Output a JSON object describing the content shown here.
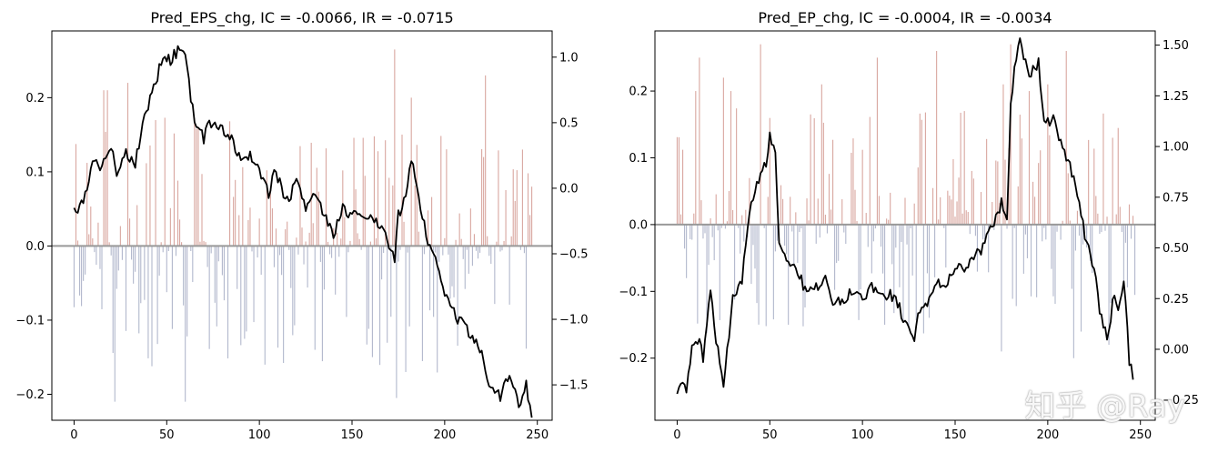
{
  "watermark": "知乎 @Ray",
  "chart_data": [
    {
      "type": "bar+line",
      "title": "Pred_EPS_chg, IC = -0.0066, IR = -0.0715",
      "xlim": [
        -12,
        258
      ],
      "xticks": [
        0,
        50,
        100,
        150,
        200,
        250
      ],
      "ylim": [
        -0.235,
        0.29
      ],
      "yticks": [
        -0.2,
        -0.1,
        0.0,
        0.1,
        0.2
      ],
      "ytick_labels": [
        "−0.2",
        "−0.1",
        "0.0",
        "0.1",
        "0.2"
      ],
      "y2lim": [
        -1.77,
        1.2
      ],
      "y2ticks": [
        -1.5,
        -1.0,
        -0.5,
        0.0,
        0.5,
        1.0
      ],
      "y2tick_labels": [
        "−1.5",
        "−1.0",
        "−0.5",
        "0.0",
        "0.5",
        "1.0"
      ],
      "zero_line": 0.0,
      "bars_seed": 7,
      "bar_spikes": [
        [
          16,
          0.21
        ],
        [
          18,
          0.21
        ],
        [
          22,
          -0.21
        ],
        [
          29,
          0.22
        ],
        [
          60,
          -0.21
        ],
        [
          103,
          -0.16
        ],
        [
          173,
          0.265
        ],
        [
          174,
          -0.205
        ],
        [
          182,
          0.2
        ],
        [
          222,
          0.23
        ],
        [
          242,
          0.13
        ],
        [
          247,
          0.08
        ]
      ],
      "bar_positive_color": "#d9a8a1",
      "bar_negative_color": "#b3b9cd",
      "line_color": "#000000",
      "cumulative_line_keypoints": [
        [
          0,
          -0.15
        ],
        [
          2,
          -0.18
        ],
        [
          5,
          -0.1
        ],
        [
          10,
          0.22
        ],
        [
          15,
          0.15
        ],
        [
          20,
          0.3
        ],
        [
          23,
          0.12
        ],
        [
          27,
          0.28
        ],
        [
          33,
          0.18
        ],
        [
          38,
          0.55
        ],
        [
          45,
          0.85
        ],
        [
          48,
          1.02
        ],
        [
          52,
          0.98
        ],
        [
          56,
          1.05
        ],
        [
          60,
          1.0
        ],
        [
          65,
          0.5
        ],
        [
          70,
          0.38
        ],
        [
          72,
          0.52
        ],
        [
          78,
          0.48
        ],
        [
          85,
          0.4
        ],
        [
          90,
          0.2
        ],
        [
          95,
          0.25
        ],
        [
          100,
          0.15
        ],
        [
          105,
          -0.05
        ],
        [
          108,
          0.15
        ],
        [
          115,
          -0.1
        ],
        [
          120,
          0.05
        ],
        [
          125,
          -0.15
        ],
        [
          130,
          -0.05
        ],
        [
          135,
          -0.2
        ],
        [
          140,
          -0.35
        ],
        [
          145,
          -0.15
        ],
        [
          150,
          -0.2
        ],
        [
          160,
          -0.2
        ],
        [
          165,
          -0.28
        ],
        [
          170,
          -0.42
        ],
        [
          173,
          -0.55
        ],
        [
          175,
          -0.2
        ],
        [
          178,
          -0.1
        ],
        [
          182,
          0.22
        ],
        [
          185,
          0.02
        ],
        [
          190,
          -0.35
        ],
        [
          195,
          -0.55
        ],
        [
          200,
          -0.78
        ],
        [
          205,
          -0.95
        ],
        [
          210,
          -1.05
        ],
        [
          215,
          -1.12
        ],
        [
          220,
          -1.25
        ],
        [
          225,
          -1.55
        ],
        [
          230,
          -1.58
        ],
        [
          235,
          -1.4
        ],
        [
          240,
          -1.65
        ],
        [
          244,
          -1.5
        ],
        [
          247,
          -1.75
        ]
      ]
    },
    {
      "type": "bar+line",
      "title": "Pred_EP_chg, IC = -0.0004, IR = -0.0034",
      "xlim": [
        -12,
        258
      ],
      "xticks": [
        0,
        50,
        100,
        150,
        200,
        250
      ],
      "ylim": [
        -0.293,
        0.29
      ],
      "yticks": [
        -0.2,
        -0.1,
        0.0,
        0.1,
        0.2
      ],
      "ytick_labels": [
        "−0.2",
        "−0.1",
        "0.0",
        "0.1",
        "0.2"
      ],
      "y2lim": [
        -0.35,
        1.57
      ],
      "y2ticks": [
        -0.25,
        0.0,
        0.25,
        0.5,
        0.75,
        1.0,
        1.25,
        1.5
      ],
      "y2tick_labels": [
        "−0.25",
        "0.00",
        "0.25",
        "0.50",
        "0.75",
        "1.00",
        "1.25",
        "1.50"
      ],
      "zero_line": 0.0,
      "bars_seed": 19,
      "bar_spikes": [
        [
          10,
          0.2
        ],
        [
          12,
          0.25
        ],
        [
          25,
          0.22
        ],
        [
          29,
          0.2
        ],
        [
          45,
          0.27
        ],
        [
          60,
          -0.15
        ],
        [
          78,
          0.21
        ],
        [
          108,
          0.25
        ],
        [
          112,
          -0.15
        ],
        [
          140,
          0.26
        ],
        [
          155,
          0.17
        ],
        [
          175,
          -0.19
        ],
        [
          176,
          0.21
        ],
        [
          180,
          0.27
        ],
        [
          190,
          0.2
        ],
        [
          200,
          0.21
        ],
        [
          210,
          0.26
        ],
        [
          214,
          -0.2
        ],
        [
          233,
          -0.18
        ],
        [
          235,
          0.13
        ]
      ],
      "bar_positive_color": "#d9a8a1",
      "bar_negative_color": "#b3b9cd",
      "line_color": "#000000",
      "cumulative_line_keypoints": [
        [
          0,
          -0.22
        ],
        [
          2,
          -0.15
        ],
        [
          5,
          -0.2
        ],
        [
          8,
          0.0
        ],
        [
          12,
          0.05
        ],
        [
          14,
          -0.05
        ],
        [
          18,
          0.3
        ],
        [
          20,
          0.12
        ],
        [
          25,
          -0.2
        ],
        [
          30,
          0.25
        ],
        [
          35,
          0.35
        ],
        [
          38,
          0.6
        ],
        [
          40,
          0.72
        ],
        [
          45,
          0.85
        ],
        [
          48,
          0.92
        ],
        [
          50,
          1.05
        ],
        [
          53,
          0.95
        ],
        [
          55,
          0.5
        ],
        [
          60,
          0.42
        ],
        [
          65,
          0.38
        ],
        [
          70,
          0.28
        ],
        [
          75,
          0.3
        ],
        [
          80,
          0.35
        ],
        [
          85,
          0.22
        ],
        [
          90,
          0.25
        ],
        [
          95,
          0.3
        ],
        [
          100,
          0.25
        ],
        [
          105,
          0.32
        ],
        [
          110,
          0.25
        ],
        [
          115,
          0.28
        ],
        [
          120,
          0.2
        ],
        [
          125,
          0.1
        ],
        [
          128,
          0.05
        ],
        [
          130,
          0.15
        ],
        [
          135,
          0.22
        ],
        [
          140,
          0.35
        ],
        [
          145,
          0.3
        ],
        [
          150,
          0.42
        ],
        [
          155,
          0.38
        ],
        [
          160,
          0.45
        ],
        [
          165,
          0.5
        ],
        [
          170,
          0.6
        ],
        [
          175,
          0.72
        ],
        [
          178,
          0.65
        ],
        [
          180,
          1.2
        ],
        [
          183,
          1.45
        ],
        [
          185,
          1.52
        ],
        [
          190,
          1.35
        ],
        [
          195,
          1.42
        ],
        [
          198,
          1.1
        ],
        [
          203,
          1.15
        ],
        [
          208,
          0.98
        ],
        [
          212,
          0.9
        ],
        [
          217,
          0.75
        ],
        [
          220,
          0.55
        ],
        [
          225,
          0.4
        ],
        [
          228,
          0.2
        ],
        [
          232,
          0.05
        ],
        [
          236,
          0.28
        ],
        [
          238,
          0.2
        ],
        [
          241,
          0.35
        ],
        [
          244,
          -0.05
        ],
        [
          246,
          -0.15
        ]
      ]
    }
  ]
}
